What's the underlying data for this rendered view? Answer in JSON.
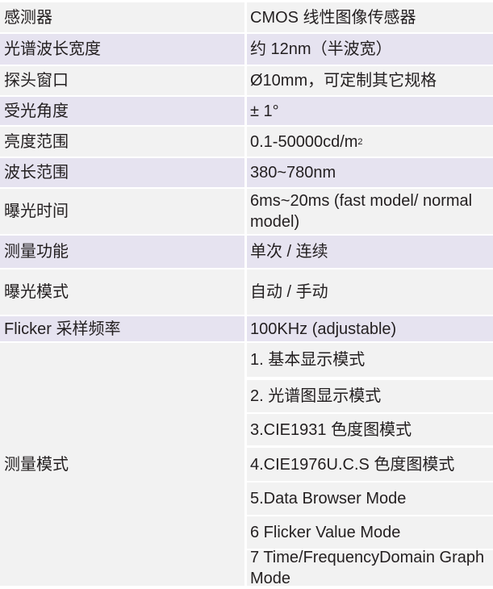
{
  "rows": [
    {
      "label": "感测器",
      "value": "CMOS 线性图像传感器"
    },
    {
      "label": "光谱波长宽度",
      "value": "约 12nm（半波宽）"
    },
    {
      "label": "探头窗口",
      "value": "Ø10mm，可定制其它规格"
    },
    {
      "label": "受光角度",
      "value": "± 1°"
    },
    {
      "label": "亮度范围",
      "value": "0.1-50000cd/m",
      "value_sup": "2"
    },
    {
      "label": "波长范围",
      "value": "380~780nm"
    },
    {
      "label": "曝光时间",
      "value": "6ms~20ms (fast model/ normal model)"
    },
    {
      "label": "测量功能",
      "value": "单次 / 连续"
    },
    {
      "label": "曝光模式",
      "value": "自动 / 手动"
    },
    {
      "label": "Flicker 采样频率",
      "value": "100KHz (adjustable)"
    }
  ],
  "measurement_modes": {
    "label": "测量模式",
    "items": [
      "1. 基本显示模式",
      "2. 光谱图显示模式",
      "3.CIE1931 色度图模式",
      "4.CIE1976U.C.S 色度图模式",
      "5.Data Browser Mode",
      "6 Flicker Value Mode",
      "7 Time/FrequencyDomain Graph Mode"
    ]
  },
  "colors": {
    "row_gray": "#f2f2f2",
    "row_lavender": "#e6e3f0",
    "text": "#231f20"
  }
}
